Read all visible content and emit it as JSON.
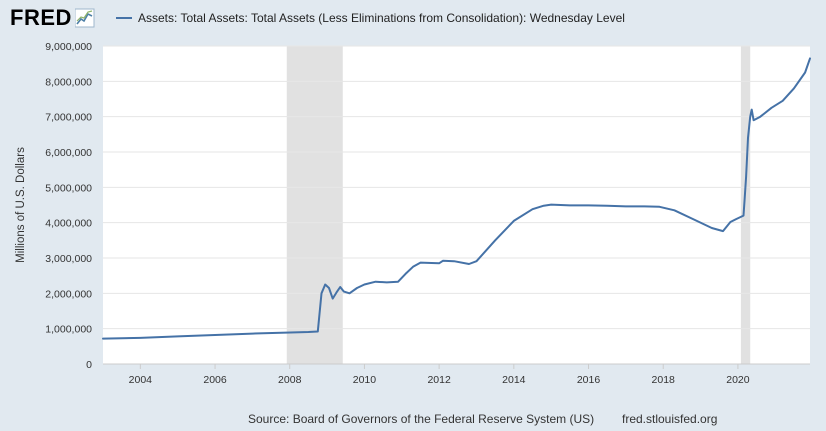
{
  "header": {
    "logo_text": "FRED",
    "logo_icon": "fred-line-chart-icon",
    "legend_label": "Assets: Total Assets: Total Assets (Less Eliminations from Consolidation): Wednesday Level"
  },
  "footer": {
    "source": "Source: Board of Governors of the Federal Reserve System (US)",
    "site": "fred.stlouisfed.org"
  },
  "colors": {
    "background": "#e1e9f0",
    "plot_background": "#ffffff",
    "series": "#4572a7",
    "recession": "#e1e1e1",
    "grid": "#e6e6e6"
  },
  "chart_data": {
    "type": "line",
    "title": "",
    "xlabel": "",
    "ylabel": "Millions of U.S. Dollars",
    "xlim": [
      2003.0,
      2021.93
    ],
    "ylim": [
      0,
      9000000
    ],
    "grid": true,
    "legend": "top",
    "y_ticks": [
      0,
      1000000,
      2000000,
      3000000,
      4000000,
      5000000,
      6000000,
      7000000,
      8000000,
      9000000
    ],
    "y_tick_labels": [
      "0",
      "1,000,000",
      "2,000,000",
      "3,000,000",
      "4,000,000",
      "5,000,000",
      "6,000,000",
      "7,000,000",
      "8,000,000",
      "9,000,000"
    ],
    "x_ticks": [
      2004,
      2006,
      2008,
      2010,
      2012,
      2014,
      2016,
      2018,
      2020
    ],
    "x_tick_labels": [
      "2004",
      "2006",
      "2008",
      "2010",
      "2012",
      "2014",
      "2016",
      "2018",
      "2020"
    ],
    "recessions": [
      {
        "start": 2007.92,
        "end": 2009.42
      },
      {
        "start": 2020.08,
        "end": 2020.33
      }
    ],
    "series": [
      {
        "name": "Assets: Total Assets: Total Assets (Less Eliminations from Consolidation): Wednesday Level",
        "x": [
          2003.0,
          2004.0,
          2005.0,
          2006.0,
          2007.0,
          2007.9,
          2008.5,
          2008.75,
          2008.85,
          2008.95,
          2009.05,
          2009.15,
          2009.25,
          2009.35,
          2009.45,
          2009.6,
          2009.8,
          2010.0,
          2010.3,
          2010.6,
          2010.9,
          2011.1,
          2011.3,
          2011.5,
          2011.7,
          2012.0,
          2012.1,
          2012.4,
          2012.8,
          2013.0,
          2013.5,
          2014.0,
          2014.5,
          2014.8,
          2015.0,
          2015.5,
          2016.0,
          2016.5,
          2017.0,
          2017.5,
          2017.9,
          2018.3,
          2018.8,
          2019.3,
          2019.6,
          2019.8,
          2019.95,
          2020.05,
          2020.15,
          2020.18,
          2020.22,
          2020.27,
          2020.33,
          2020.37,
          2020.42,
          2020.6,
          2020.9,
          2021.2,
          2021.5,
          2021.8,
          2021.93
        ],
        "values": [
          720000,
          740000,
          780000,
          820000,
          860000,
          890000,
          905000,
          920000,
          2000000,
          2250000,
          2150000,
          1850000,
          2020000,
          2180000,
          2050000,
          2000000,
          2150000,
          2250000,
          2330000,
          2310000,
          2330000,
          2550000,
          2750000,
          2870000,
          2860000,
          2850000,
          2920000,
          2910000,
          2830000,
          2910000,
          3500000,
          4050000,
          4380000,
          4480000,
          4510000,
          4490000,
          4490000,
          4480000,
          4460000,
          4460000,
          4450000,
          4350000,
          4100000,
          3850000,
          3760000,
          4020000,
          4100000,
          4150000,
          4200000,
          4650000,
          5300000,
          6400000,
          7000000,
          7200000,
          6900000,
          7000000,
          7250000,
          7450000,
          7800000,
          8250000,
          8650000
        ]
      }
    ]
  }
}
